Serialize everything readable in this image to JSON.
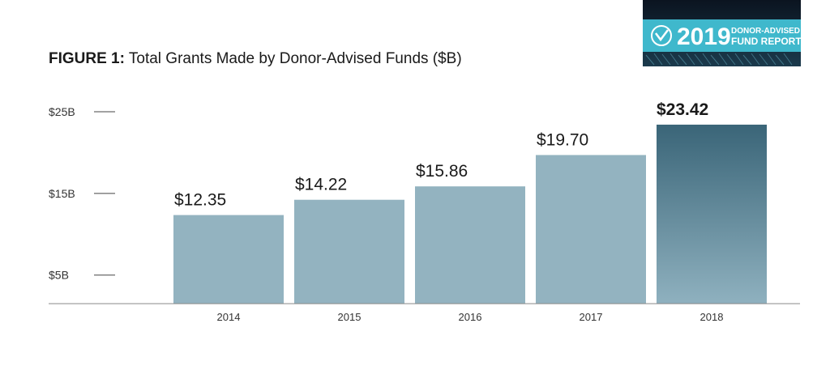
{
  "figure": {
    "label": "FIGURE 1:",
    "title_text": "Total Grants Made by Donor-Advised Funds ($B)"
  },
  "badge": {
    "year": "2019",
    "line1": "DONOR-ADVISED",
    "line2": "FUND REPORT",
    "colors": {
      "band": "#3fb8cc",
      "dark": "#0e1b2c"
    }
  },
  "chart_data": {
    "type": "bar",
    "categories": [
      "2014",
      "2015",
      "2016",
      "2017",
      "2018"
    ],
    "values": [
      12.35,
      14.22,
      15.86,
      19.7,
      23.42
    ],
    "value_labels": [
      "$12.35",
      "$14.22",
      "$15.86",
      "$19.70",
      "$23.42"
    ],
    "y_ticks": [
      {
        "value": 5,
        "label": "$5B"
      },
      {
        "value": 15,
        "label": "$15B"
      },
      {
        "value": 25,
        "label": "$25B"
      }
    ],
    "ylim": [
      1.5,
      25
    ],
    "highlight_index": 4,
    "colors": {
      "bar": "#93b3c0",
      "highlight_top": "#3a6578",
      "highlight_bottom": "#8fb1bf",
      "axis": "#888888"
    }
  }
}
